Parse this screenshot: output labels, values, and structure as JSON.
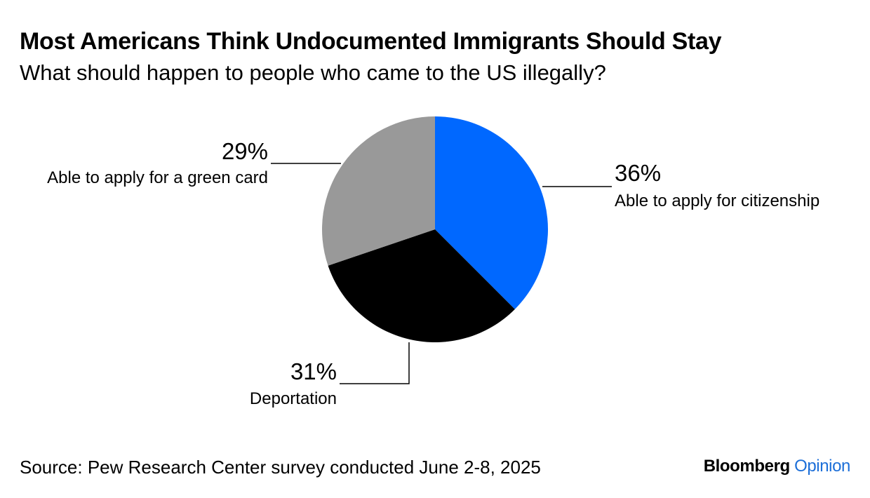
{
  "header": {
    "title": "Most Americans Think Undocumented Immigrants Should Stay",
    "subtitle": "What should happen to people who came to the US illegally?"
  },
  "footer": {
    "source": "Source: Pew Research Center survey conducted June 2-8, 2025",
    "brand_main": "Bloomberg",
    "brand_sub": "Opinion"
  },
  "chart_data": {
    "type": "pie",
    "start": "12 o'clock, clockwise",
    "legend": "none (direct labels)",
    "slices": [
      {
        "label": "Able to apply for citizenship",
        "value": 36,
        "value_label": "36%",
        "color": "#0068ff"
      },
      {
        "label": "Deportation",
        "value": 31,
        "value_label": "31%",
        "color": "#000000"
      },
      {
        "label": "Able to apply for a green card",
        "value": 29,
        "value_label": "29%",
        "color": "#999999"
      }
    ]
  }
}
